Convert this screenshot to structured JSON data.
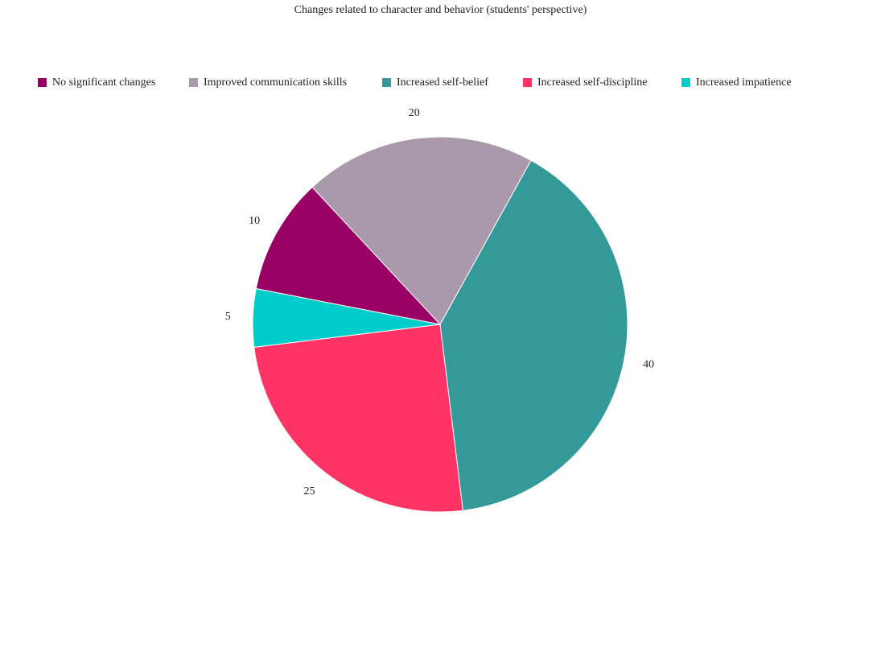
{
  "chart_data": {
    "type": "pie",
    "title": "Changes related to character and behavior (students' perspective)",
    "categories": [
      "No significant changes",
      "Improved communication skills",
      "Increased self-belief",
      "Increased self-discipline",
      "Increased impatience"
    ],
    "values": [
      10,
      20,
      40,
      25,
      5
    ],
    "data_labels": [
      "10",
      "20",
      "40",
      "25",
      "5"
    ],
    "colors": [
      "#990066",
      "#AA99AA",
      "#339999",
      "#FF3366",
      "#00CCCC"
    ],
    "legend_position": "top"
  }
}
